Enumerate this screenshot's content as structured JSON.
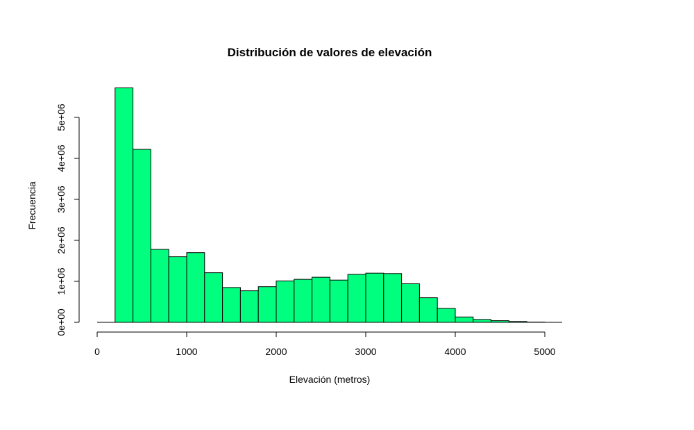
{
  "chart_data": {
    "type": "bar",
    "title": "Distribución de valores de elevación",
    "xlabel": "Elevación (metros)",
    "ylabel": "Frecuencia",
    "bar_color": "#00FF7F",
    "border_color": "#000000",
    "xlim": [
      0,
      5200
    ],
    "ylim": [
      0,
      5700000
    ],
    "x_ticks": [
      {
        "value": 0,
        "label": "0"
      },
      {
        "value": 1000,
        "label": "1000"
      },
      {
        "value": 2000,
        "label": "2000"
      },
      {
        "value": 3000,
        "label": "3000"
      },
      {
        "value": 4000,
        "label": "4000"
      },
      {
        "value": 5000,
        "label": "5000"
      }
    ],
    "y_ticks": [
      {
        "value": 0,
        "label": "0e+00"
      },
      {
        "value": 1000000,
        "label": "1e+06"
      },
      {
        "value": 2000000,
        "label": "2e+06"
      },
      {
        "value": 3000000,
        "label": "3e+06"
      },
      {
        "value": 4000000,
        "label": "4e+06"
      },
      {
        "value": 5000000,
        "label": "5e+06"
      }
    ],
    "bins": [
      {
        "x0": 200,
        "x1": 400,
        "count": 5720000
      },
      {
        "x0": 400,
        "x1": 600,
        "count": 4220000
      },
      {
        "x0": 600,
        "x1": 800,
        "count": 1780000
      },
      {
        "x0": 800,
        "x1": 1000,
        "count": 1600000
      },
      {
        "x0": 1000,
        "x1": 1200,
        "count": 1700000
      },
      {
        "x0": 1200,
        "x1": 1400,
        "count": 1210000
      },
      {
        "x0": 1400,
        "x1": 1600,
        "count": 850000
      },
      {
        "x0": 1600,
        "x1": 1800,
        "count": 770000
      },
      {
        "x0": 1800,
        "x1": 2000,
        "count": 870000
      },
      {
        "x0": 2000,
        "x1": 2200,
        "count": 1010000
      },
      {
        "x0": 2200,
        "x1": 2400,
        "count": 1050000
      },
      {
        "x0": 2400,
        "x1": 2600,
        "count": 1100000
      },
      {
        "x0": 2600,
        "x1": 2800,
        "count": 1030000
      },
      {
        "x0": 2800,
        "x1": 3000,
        "count": 1170000
      },
      {
        "x0": 3000,
        "x1": 3200,
        "count": 1200000
      },
      {
        "x0": 3200,
        "x1": 3400,
        "count": 1190000
      },
      {
        "x0": 3400,
        "x1": 3600,
        "count": 940000
      },
      {
        "x0": 3600,
        "x1": 3800,
        "count": 600000
      },
      {
        "x0": 3800,
        "x1": 4000,
        "count": 340000
      },
      {
        "x0": 4000,
        "x1": 4200,
        "count": 130000
      },
      {
        "x0": 4200,
        "x1": 4400,
        "count": 70000
      },
      {
        "x0": 4400,
        "x1": 4600,
        "count": 40000
      },
      {
        "x0": 4600,
        "x1": 4800,
        "count": 20000
      },
      {
        "x0": 4800,
        "x1": 5000,
        "count": 5000
      }
    ]
  }
}
